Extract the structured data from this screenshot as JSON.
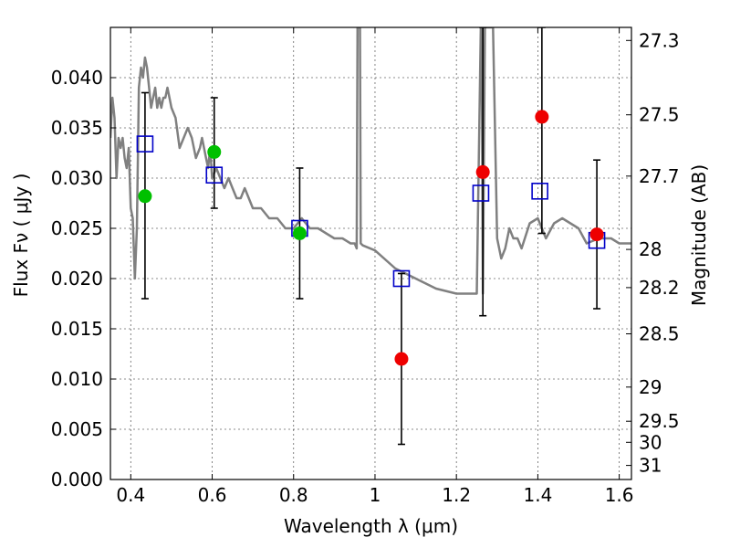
{
  "chart_data": {
    "type": "scatter",
    "title": "",
    "xlabel": "Wavelength  λ (μm)",
    "ylabel": "Flux  Fν  ( μJy )",
    "y2label": "Magnitude (AB)",
    "xlim": [
      0.35,
      1.63
    ],
    "ylim": [
      0.0,
      0.045
    ],
    "grid": true,
    "xticks": [
      0.4,
      0.6,
      0.8,
      1.0,
      1.2,
      1.4,
      1.6
    ],
    "xtick_labels": [
      "0.4",
      "0.6",
      "0.8",
      "1",
      "1.2",
      "1.4",
      "1.6"
    ],
    "yticks": [
      0.0,
      0.005,
      0.01,
      0.015,
      0.02,
      0.025,
      0.03,
      0.035,
      0.04
    ],
    "ytick_labels": [
      "0.000",
      "0.005",
      "0.010",
      "0.015",
      "0.020",
      "0.025",
      "0.030",
      "0.035",
      "0.040"
    ],
    "right_axis_ticks": [
      {
        "label": "27.3",
        "flux": 0.0437
      },
      {
        "label": "27.5",
        "flux": 0.0363
      },
      {
        "label": "27.7",
        "flux": 0.0302
      },
      {
        "label": "28",
        "flux": 0.0229
      },
      {
        "label": "28.2",
        "flux": 0.0191
      },
      {
        "label": "28.5",
        "flux": 0.0145
      },
      {
        "label": "29",
        "flux": 0.0092
      },
      {
        "label": "29.5",
        "flux": 0.0058
      },
      {
        "label": "30",
        "flux": 0.0037
      },
      {
        "label": "31",
        "flux": 0.0014
      }
    ],
    "series": [
      {
        "kind": "line",
        "color": "#808080",
        "x": [
          0.35,
          0.355,
          0.36,
          0.365,
          0.37,
          0.375,
          0.38,
          0.385,
          0.39,
          0.395,
          0.4,
          0.405,
          0.41,
          0.415,
          0.42,
          0.425,
          0.43,
          0.435,
          0.44,
          0.445,
          0.45,
          0.455,
          0.46,
          0.465,
          0.47,
          0.475,
          0.48,
          0.485,
          0.49,
          0.495,
          0.5,
          0.51,
          0.52,
          0.53,
          0.54,
          0.55,
          0.56,
          0.57,
          0.575,
          0.58,
          0.585,
          0.59,
          0.595,
          0.6,
          0.61,
          0.62,
          0.63,
          0.64,
          0.65,
          0.66,
          0.67,
          0.68,
          0.7,
          0.72,
          0.74,
          0.76,
          0.78,
          0.8,
          0.82,
          0.84,
          0.86,
          0.88,
          0.9,
          0.92,
          0.94,
          0.95,
          0.955,
          0.957,
          0.96,
          0.963,
          0.965,
          0.97,
          1.0,
          1.05,
          1.1,
          1.15,
          1.2,
          1.25,
          1.26,
          1.262,
          1.265,
          1.27,
          1.28,
          1.29,
          1.3,
          1.31,
          1.32,
          1.33,
          1.34,
          1.35,
          1.36,
          1.38,
          1.4,
          1.42,
          1.44,
          1.46,
          1.48,
          1.5,
          1.52,
          1.55,
          1.58,
          1.6,
          1.63
        ],
        "y": [
          0.034,
          0.038,
          0.036,
          0.03,
          0.034,
          0.033,
          0.034,
          0.032,
          0.031,
          0.033,
          0.027,
          0.026,
          0.02,
          0.025,
          0.039,
          0.041,
          0.04,
          0.042,
          0.041,
          0.039,
          0.037,
          0.038,
          0.039,
          0.037,
          0.038,
          0.037,
          0.038,
          0.038,
          0.039,
          0.038,
          0.037,
          0.036,
          0.033,
          0.034,
          0.035,
          0.034,
          0.032,
          0.033,
          0.034,
          0.033,
          0.032,
          0.031,
          0.033,
          0.03,
          0.031,
          0.03,
          0.029,
          0.03,
          0.029,
          0.028,
          0.028,
          0.029,
          0.027,
          0.027,
          0.026,
          0.026,
          0.025,
          0.025,
          0.026,
          0.025,
          0.025,
          0.0245,
          0.024,
          0.024,
          0.0235,
          0.0235,
          0.023,
          0.045,
          0.045,
          0.045,
          0.0235,
          0.0233,
          0.0228,
          0.021,
          0.02,
          0.019,
          0.0185,
          0.0185,
          0.045,
          0.045,
          0.0185,
          0.045,
          0.045,
          0.045,
          0.024,
          0.022,
          0.023,
          0.025,
          0.024,
          0.024,
          0.023,
          0.0255,
          0.026,
          0.024,
          0.0255,
          0.026,
          0.0255,
          0.025,
          0.0235,
          0.024,
          0.024,
          0.0235,
          0.0235
        ]
      },
      {
        "kind": "errorbar",
        "color": "#000000",
        "points": [
          {
            "x": 0.435,
            "lo": 0.018,
            "hi": 0.0385
          },
          {
            "x": 0.605,
            "lo": 0.027,
            "hi": 0.038
          },
          {
            "x": 0.815,
            "lo": 0.018,
            "hi": 0.031
          },
          {
            "x": 1.065,
            "lo": 0.0035,
            "hi": 0.0205
          },
          {
            "x": 1.265,
            "lo": 0.0163,
            "hi": 0.045
          },
          {
            "x": 1.41,
            "lo": 0.0245,
            "hi": 0.045
          },
          {
            "x": 1.545,
            "lo": 0.017,
            "hi": 0.0318
          }
        ]
      },
      {
        "kind": "square",
        "color": "#0000c8",
        "points": [
          {
            "x": 0.435,
            "y": 0.0334
          },
          {
            "x": 0.605,
            "y": 0.0303
          },
          {
            "x": 0.815,
            "y": 0.025
          },
          {
            "x": 1.065,
            "y": 0.02
          },
          {
            "x": 1.26,
            "y": 0.0285
          },
          {
            "x": 1.405,
            "y": 0.0287
          },
          {
            "x": 1.545,
            "y": 0.0238
          }
        ]
      },
      {
        "kind": "circle",
        "color": "#00c000",
        "points": [
          {
            "x": 0.435,
            "y": 0.0282
          },
          {
            "x": 0.605,
            "y": 0.0326
          },
          {
            "x": 0.815,
            "y": 0.0245
          }
        ]
      },
      {
        "kind": "circle",
        "color": "#ee0000",
        "points": [
          {
            "x": 1.065,
            "y": 0.012
          },
          {
            "x": 1.265,
            "y": 0.0306
          },
          {
            "x": 1.41,
            "y": 0.0361
          },
          {
            "x": 1.545,
            "y": 0.0244
          }
        ]
      }
    ]
  }
}
